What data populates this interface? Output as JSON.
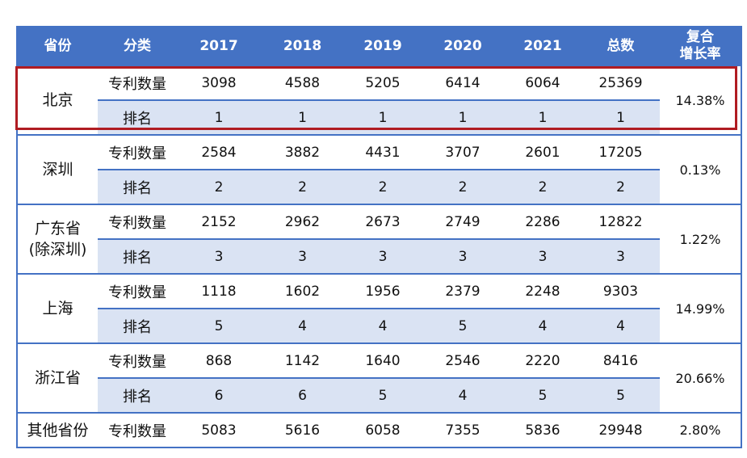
{
  "chart_data": {
    "type": "table",
    "columns": [
      "省份",
      "分类",
      "2017",
      "2018",
      "2019",
      "2020",
      "2021",
      "总数",
      "复合",
      "增长率"
    ],
    "years": [
      "2017",
      "2018",
      "2019",
      "2020",
      "2021"
    ],
    "groups": [
      {
        "province": [
          "北京"
        ],
        "patents": [
          "3098",
          "4588",
          "5205",
          "6414",
          "6064"
        ],
        "total": "25369",
        "ranks": [
          "1",
          "1",
          "1",
          "1",
          "1"
        ],
        "rank_total": "1",
        "cagr": "14.38%"
      },
      {
        "province": [
          "深圳"
        ],
        "patents": [
          "2584",
          "3882",
          "4431",
          "3707",
          "2601"
        ],
        "total": "17205",
        "ranks": [
          "2",
          "2",
          "2",
          "2",
          "2"
        ],
        "rank_total": "2",
        "cagr": "0.13%"
      },
      {
        "province": [
          "广东省",
          "(除深圳)"
        ],
        "patents": [
          "2152",
          "2962",
          "2673",
          "2749",
          "2286"
        ],
        "total": "12822",
        "ranks": [
          "3",
          "3",
          "3",
          "3",
          "3"
        ],
        "rank_total": "3",
        "cagr": "1.22%"
      },
      {
        "province": [
          "上海"
        ],
        "patents": [
          "1118",
          "1602",
          "1956",
          "2379",
          "2248"
        ],
        "total": "9303",
        "ranks": [
          "5",
          "4",
          "4",
          "5",
          "4"
        ],
        "rank_total": "4",
        "cagr": "14.99%"
      },
      {
        "province": [
          "浙江省"
        ],
        "patents": [
          "868",
          "1142",
          "1640",
          "2546",
          "2220"
        ],
        "total": "8416",
        "ranks": [
          "6",
          "6",
          "5",
          "4",
          "5"
        ],
        "rank_total": "5",
        "cagr": "20.66%"
      }
    ],
    "other": {
      "province": "其他省份",
      "category": "专利数量",
      "patents": [
        "5083",
        "5616",
        "6058",
        "7355",
        "5836"
      ],
      "total": "29948",
      "cagr": "2.80%"
    },
    "category_labels": {
      "patents": "专利数量",
      "rank": "排名"
    },
    "highlighted_group": "北京",
    "colors": {
      "header": "#4472c4",
      "rank_row": "#dae3f3",
      "highlight": "#b01c22"
    }
  }
}
